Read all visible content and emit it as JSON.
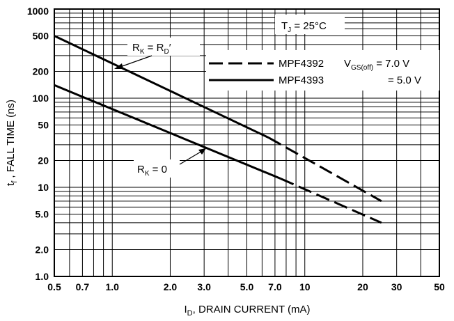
{
  "chart_data": {
    "type": "line",
    "xscale": "log",
    "yscale": "log",
    "xlim": [
      0.5,
      50
    ],
    "ylim": [
      1.0,
      1000
    ],
    "grid": true,
    "xlabel": {
      "main": "I",
      "sub": "D",
      "rest": ", DRAIN CURRENT (mA)"
    },
    "ylabel": {
      "main": "t",
      "sub": "f",
      "rest": " , FALL TIME (ns)"
    },
    "x_ticks": [
      {
        "value": 0.5,
        "label": "0.5"
      },
      {
        "value": 0.7,
        "label": "0.7"
      },
      {
        "value": 1.0,
        "label": "1.0"
      },
      {
        "value": 2.0,
        "label": "2.0"
      },
      {
        "value": 3.0,
        "label": "3.0"
      },
      {
        "value": 5.0,
        "label": "5.0"
      },
      {
        "value": 7.0,
        "label": "7.0"
      },
      {
        "value": 10,
        "label": "10"
      },
      {
        "value": 20,
        "label": "20"
      },
      {
        "value": 30,
        "label": "30"
      },
      {
        "value": 50,
        "label": "50"
      }
    ],
    "y_ticks": [
      {
        "value": 1.0,
        "label": "1.0"
      },
      {
        "value": 2.0,
        "label": "2.0"
      },
      {
        "value": 5.0,
        "label": "5.0"
      },
      {
        "value": 10,
        "label": "10"
      },
      {
        "value": 20,
        "label": "20"
      },
      {
        "value": 50,
        "label": "50"
      },
      {
        "value": 100,
        "label": "100"
      },
      {
        "value": 200,
        "label": "200"
      },
      {
        "value": 500,
        "label": "500"
      },
      {
        "value": 1000,
        "label": "1000"
      }
    ],
    "series": [
      {
        "curve": "RK = RD'",
        "device": "MPF4393",
        "style": "solid",
        "x": [
          0.5,
          6.5
        ],
        "y": [
          500,
          36
        ]
      },
      {
        "curve": "RK = RD'",
        "device": "MPF4392",
        "style": "dashed",
        "x": [
          6.5,
          25
        ],
        "y": [
          36,
          7.0
        ]
      },
      {
        "curve": "RK = 0",
        "device": "MPF4393",
        "style": "solid",
        "x": [
          0.5,
          7.5
        ],
        "y": [
          140,
          12.5
        ]
      },
      {
        "curve": "RK = 0",
        "device": "MPF4392",
        "style": "dashed",
        "x": [
          7.5,
          25
        ],
        "y": [
          12.5,
          4.0
        ]
      }
    ],
    "annotations": {
      "tj": {
        "main": "T",
        "sub": "J",
        "rest": " = 25°C"
      },
      "rk_rd": {
        "main": "R",
        "sub1": "K",
        "mid": " = R",
        "sub2": "D",
        "rest": "′"
      },
      "rk_0": {
        "main": "R",
        "sub": "K",
        "rest": " = 0"
      },
      "vgs": {
        "main": "V",
        "sub": "GS(off)",
        "rest": " = 7.0 V"
      },
      "vgs2": "= 5.0 V"
    },
    "legend": {
      "placement": "top-right",
      "entries": [
        {
          "label": "MPF4392",
          "style": "dashed"
        },
        {
          "label": "MPF4393",
          "style": "solid"
        }
      ]
    }
  }
}
